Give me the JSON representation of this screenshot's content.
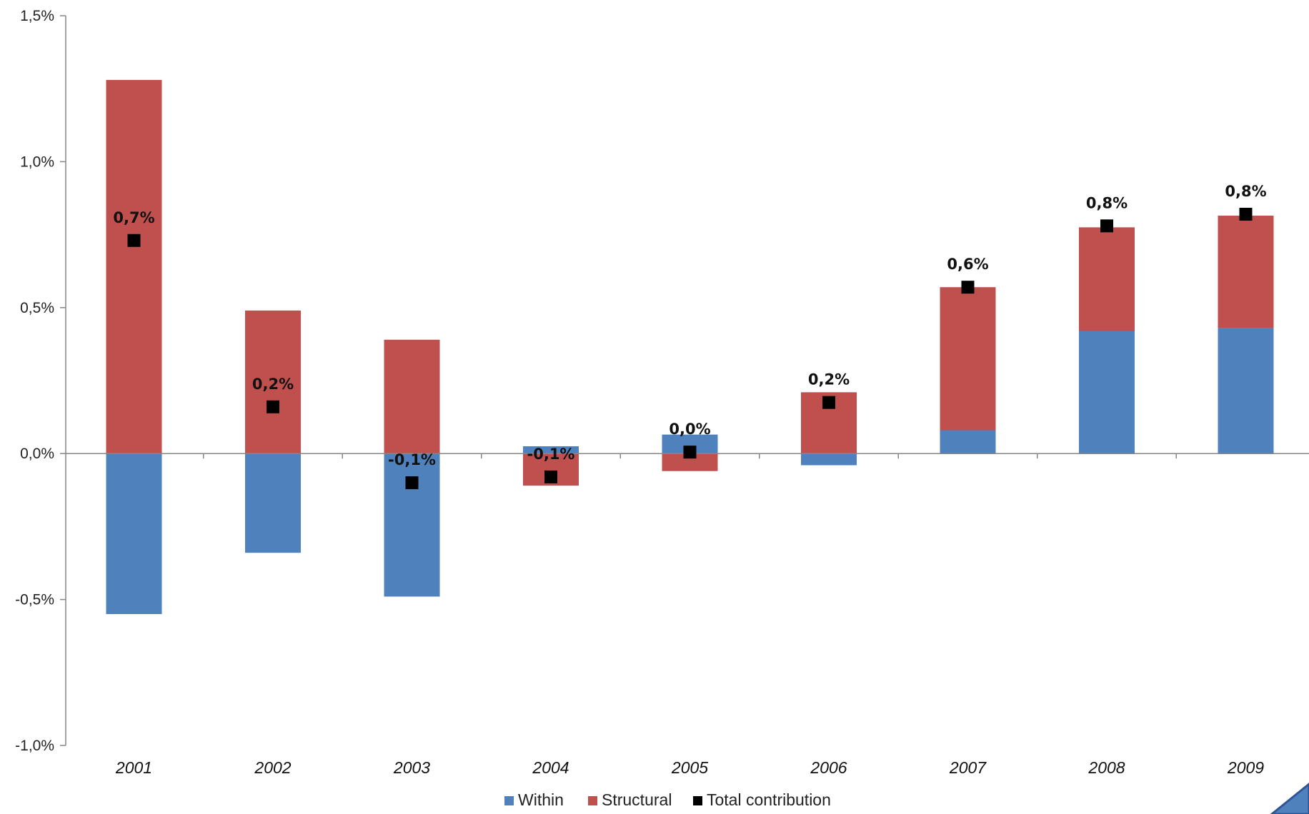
{
  "chart_data": {
    "type": "bar",
    "stacked": true,
    "title": "",
    "xlabel": "",
    "ylabel": "",
    "categories": [
      "2001",
      "2002",
      "2003",
      "2004",
      "2005",
      "2006",
      "2007",
      "2008",
      "2009"
    ],
    "series": [
      {
        "name": "Within",
        "type": "bar",
        "color": "#4F81BD",
        "values": [
          -0.55,
          -0.34,
          -0.49,
          0.025,
          0.065,
          -0.04,
          0.08,
          0.42,
          0.43
        ]
      },
      {
        "name": "Structural",
        "type": "bar",
        "color": "#C0504D",
        "values": [
          1.28,
          0.49,
          0.39,
          -0.11,
          -0.06,
          0.21,
          0.49,
          0.355,
          0.385
        ]
      },
      {
        "name": "Total contribution",
        "type": "marker",
        "color": "#000000",
        "values": [
          0.73,
          0.16,
          -0.1,
          -0.08,
          0.005,
          0.175,
          0.57,
          0.78,
          0.82
        ]
      }
    ],
    "data_labels": [
      "0,7%",
      "0,2%",
      "-0,1%",
      "-0,1%",
      "0,0%",
      "0,2%",
      "0,6%",
      "0,8%",
      "0,8%"
    ],
    "ylim": [
      -1.0,
      1.5
    ],
    "y_ticks": [
      {
        "value": 1.5,
        "label": "1,5%"
      },
      {
        "value": 1.0,
        "label": "1,0%"
      },
      {
        "value": 0.5,
        "label": "0,5%"
      },
      {
        "value": 0.0,
        "label": "0,0%"
      },
      {
        "value": -0.5,
        "label": "-0,5%"
      },
      {
        "value": -1.0,
        "label": "-1,0%"
      }
    ],
    "grid": false,
    "legend_position": "bottom"
  }
}
